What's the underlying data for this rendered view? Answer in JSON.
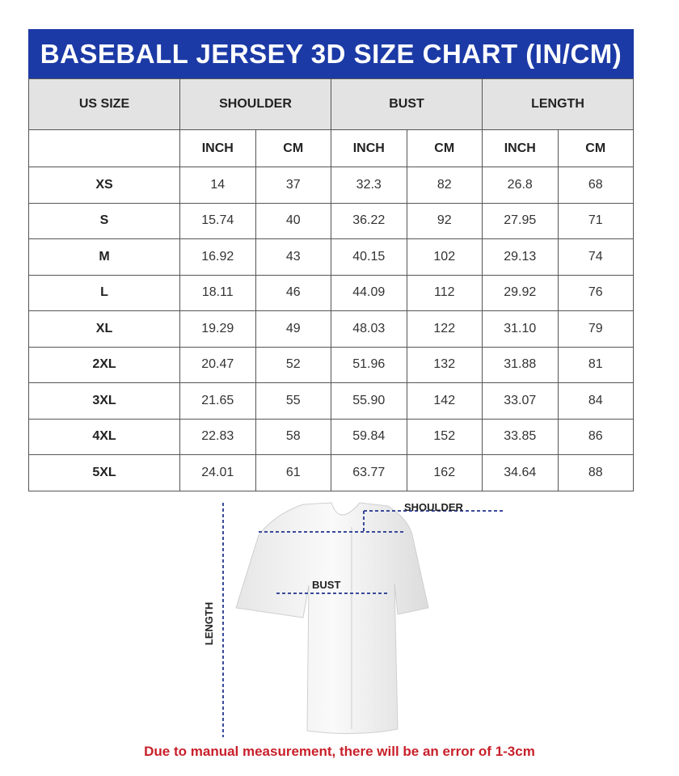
{
  "title": "BASEBALL JERSEY 3D SIZE CHART (IN/CM)",
  "headers": {
    "us_size": "US SIZE",
    "shoulder": "SHOULDER",
    "bust": "BUST",
    "length": "LENGTH"
  },
  "units": [
    "INCH",
    "CM",
    "INCH",
    "CM",
    "INCH",
    "CM"
  ],
  "rows": [
    [
      "XS",
      "14",
      "37",
      "32.3",
      "82",
      "26.8",
      "68"
    ],
    [
      "S",
      "15.74",
      "40",
      "36.22",
      "92",
      "27.95",
      "71"
    ],
    [
      "M",
      "16.92",
      "43",
      "40.15",
      "102",
      "29.13",
      "74"
    ],
    [
      "L",
      "18.11",
      "46",
      "44.09",
      "112",
      "29.92",
      "76"
    ],
    [
      "XL",
      "19.29",
      "49",
      "48.03",
      "122",
      "31.10",
      "79"
    ],
    [
      "2XL",
      "20.47",
      "52",
      "51.96",
      "132",
      "31.88",
      "81"
    ],
    [
      "3XL",
      "21.65",
      "55",
      "55.90",
      "142",
      "33.07",
      "84"
    ],
    [
      "4XL",
      "22.83",
      "58",
      "59.84",
      "152",
      "33.85",
      "86"
    ],
    [
      "5XL",
      "24.01",
      "61",
      "63.77",
      "162",
      "34.64",
      "88"
    ]
  ],
  "diagram": {
    "shoulder_label": "SHOULDER",
    "bust_label": "BUST",
    "length_label": "LENGTH"
  },
  "note": "Due to manual measurement, there will be an error of 1-3cm",
  "colors": {
    "title_bg": "#1c3aa6",
    "note": "#c8202a",
    "header_bg": "#e3e3e3",
    "measure_line": "#3a4a9a"
  }
}
